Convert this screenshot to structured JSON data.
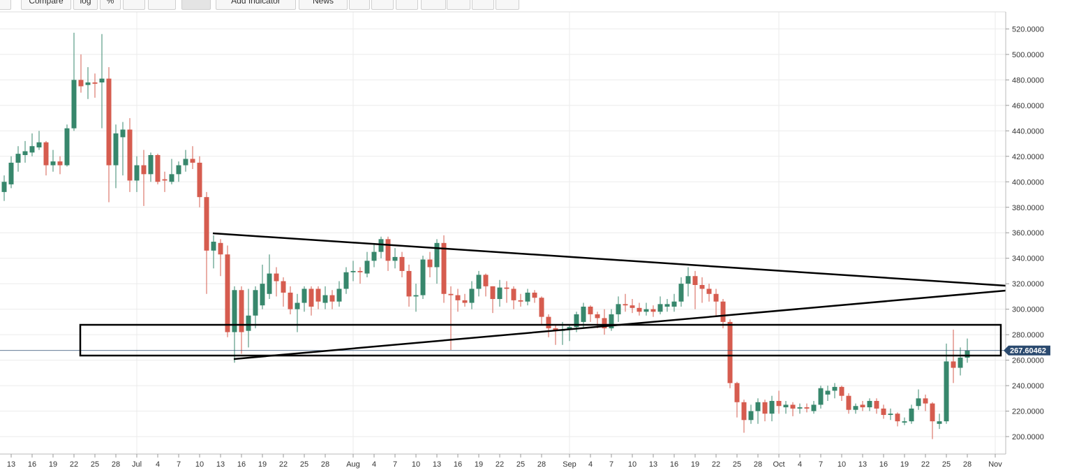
{
  "toolbar": {
    "buttons": [
      "Compare",
      "log",
      "%",
      "Add Indicator",
      "News"
    ]
  },
  "chart_data": {
    "type": "candlestick",
    "x": [
      "Jun 12",
      "Jun 13",
      "Jun 14",
      "Jun 15",
      "Jun 16",
      "Jun 17",
      "Jun 18",
      "Jun 19",
      "Jun 20",
      "Jun 21",
      "Jun 22",
      "Jun 23",
      "Jun 24",
      "Jun 25",
      "Jun 26",
      "Jun 27",
      "Jun 28",
      "Jun 29",
      "Jun 30",
      "Jul 1",
      "Jul 2",
      "Jul 3",
      "Jul 4",
      "Jul 5",
      "Jul 6",
      "Jul 7",
      "Jul 8",
      "Jul 9",
      "Jul 10",
      "Jul 11",
      "Jul 12",
      "Jul 13",
      "Jul 14",
      "Jul 15",
      "Jul 16",
      "Jul 17",
      "Jul 18",
      "Jul 19",
      "Jul 20",
      "Jul 21",
      "Jul 22",
      "Jul 23",
      "Jul 24",
      "Jul 25",
      "Jul 26",
      "Jul 27",
      "Jul 28",
      "Jul 29",
      "Jul 30",
      "Jul 31",
      "Aug 1",
      "Aug 2",
      "Aug 3",
      "Aug 4",
      "Aug 5",
      "Aug 6",
      "Aug 7",
      "Aug 8",
      "Aug 9",
      "Aug 10",
      "Aug 11",
      "Aug 12",
      "Aug 13",
      "Aug 14",
      "Aug 15",
      "Aug 16",
      "Aug 17",
      "Aug 18",
      "Aug 19",
      "Aug 20",
      "Aug 21",
      "Aug 22",
      "Aug 23",
      "Aug 24",
      "Aug 25",
      "Aug 26",
      "Aug 27",
      "Aug 28",
      "Aug 29",
      "Aug 30",
      "Aug 31",
      "Sep 1",
      "Sep 2",
      "Sep 3",
      "Sep 4",
      "Sep 5",
      "Sep 6",
      "Sep 7",
      "Sep 8",
      "Sep 9",
      "Sep 10",
      "Sep 11",
      "Sep 12",
      "Sep 13",
      "Sep 14",
      "Sep 15",
      "Sep 16",
      "Sep 17",
      "Sep 18",
      "Sep 19",
      "Sep 20",
      "Sep 21",
      "Sep 22",
      "Sep 23",
      "Sep 24",
      "Sep 25",
      "Sep 26",
      "Sep 27",
      "Sep 28",
      "Sep 29",
      "Sep 30",
      "Oct 1",
      "Oct 2",
      "Oct 3",
      "Oct 4",
      "Oct 5",
      "Oct 6",
      "Oct 7",
      "Oct 8",
      "Oct 9",
      "Oct 10",
      "Oct 11",
      "Oct 12",
      "Oct 13",
      "Oct 14",
      "Oct 15",
      "Oct 16",
      "Oct 17",
      "Oct 18",
      "Oct 19",
      "Oct 20",
      "Oct 21",
      "Oct 22",
      "Oct 23",
      "Oct 24",
      "Oct 25",
      "Oct 26",
      "Oct 27",
      "Oct 28"
    ],
    "open": [
      392,
      398,
      415,
      421,
      423,
      427,
      431,
      413,
      416,
      413,
      442,
      480,
      476,
      478,
      478,
      481,
      413,
      435,
      441,
      401,
      413,
      406,
      421,
      402,
      400,
      406,
      413,
      418,
      415,
      388,
      346,
      352,
      343,
      282,
      315,
      283,
      295,
      303,
      312,
      328,
      322,
      313,
      300,
      305,
      316,
      316,
      305,
      311,
      306,
      316,
      329,
      330,
      328,
      338,
      345,
      355,
      338,
      341,
      330,
      310,
      311,
      339,
      333,
      352,
      312,
      311,
      307,
      305,
      316,
      327,
      318,
      308,
      317,
      316,
      307,
      306,
      313,
      309,
      294,
      285,
      283,
      284,
      286,
      290,
      302,
      296,
      293,
      285,
      296,
      304,
      303,
      301,
      298,
      300,
      298,
      302,
      302,
      306,
      320,
      326,
      319,
      316,
      312,
      306,
      290,
      242,
      227,
      213,
      220,
      227,
      218,
      228,
      223,
      225,
      222,
      223,
      220,
      225,
      233,
      236,
      239,
      232,
      221,
      225,
      223,
      228,
      222,
      217,
      218,
      211,
      212,
      224,
      230,
      226,
      210,
      212,
      259,
      254,
      262
    ],
    "high": [
      405,
      420,
      428,
      432,
      438,
      440,
      432,
      425,
      420,
      445,
      517,
      500,
      490,
      485,
      516,
      490,
      445,
      447,
      450,
      420,
      425,
      423,
      422,
      408,
      418,
      416,
      425,
      428,
      420,
      392,
      358,
      355,
      350,
      318,
      318,
      316,
      318,
      335,
      343,
      333,
      325,
      318,
      312,
      318,
      318,
      318,
      318,
      315,
      322,
      333,
      338,
      333,
      345,
      352,
      357,
      357,
      348,
      345,
      335,
      320,
      342,
      345,
      355,
      358,
      318,
      316,
      312,
      322,
      330,
      328,
      318,
      323,
      322,
      318,
      312,
      316,
      315,
      310,
      296,
      288,
      290,
      288,
      298,
      305,
      303,
      298,
      300,
      300,
      310,
      312,
      308,
      305,
      305,
      303,
      310,
      308,
      312,
      325,
      333,
      330,
      325,
      320,
      316,
      308,
      292,
      243,
      229,
      225,
      230,
      229,
      232,
      236,
      228,
      227,
      226,
      226,
      228,
      240,
      240,
      242,
      240,
      234,
      226,
      228,
      230,
      230,
      225,
      222,
      219,
      215,
      225,
      237,
      233,
      227,
      218,
      273,
      284,
      270,
      277
    ],
    "low": [
      385,
      395,
      408,
      415,
      420,
      425,
      405,
      408,
      406,
      412,
      440,
      470,
      465,
      466,
      442,
      384,
      395,
      405,
      392,
      392,
      381,
      400,
      398,
      392,
      398,
      400,
      408,
      410,
      380,
      312,
      332,
      326,
      278,
      258,
      265,
      270,
      285,
      300,
      308,
      310,
      302,
      296,
      282,
      298,
      295,
      300,
      300,
      300,
      302,
      312,
      322,
      320,
      325,
      333,
      340,
      330,
      332,
      325,
      302,
      298,
      308,
      325,
      320,
      305,
      268,
      298,
      302,
      300,
      310,
      310,
      297,
      302,
      305,
      300,
      302,
      303,
      305,
      288,
      278,
      272,
      272,
      275,
      282,
      285,
      290,
      285,
      280,
      283,
      290,
      298,
      297,
      295,
      295,
      294,
      296,
      298,
      298,
      302,
      310,
      300,
      305,
      306,
      295,
      285,
      238,
      215,
      203,
      210,
      210,
      212,
      212,
      218,
      218,
      216,
      218,
      219,
      218,
      222,
      228,
      230,
      228,
      218,
      218,
      220,
      220,
      218,
      214,
      213,
      208,
      209,
      210,
      221,
      220,
      198,
      206,
      210,
      242,
      248,
      258
    ],
    "close": [
      400,
      415,
      422,
      424,
      428,
      431,
      413,
      416,
      413,
      442,
      480,
      475,
      478,
      477,
      481,
      413,
      438,
      441,
      401,
      413,
      406,
      421,
      400,
      401,
      406,
      413,
      418,
      415,
      388,
      346,
      353,
      343,
      282,
      315,
      282,
      295,
      315,
      320,
      328,
      322,
      313,
      300,
      305,
      316,
      302,
      306,
      311,
      306,
      316,
      329,
      330,
      329,
      338,
      345,
      355,
      338,
      341,
      330,
      310,
      311,
      339,
      333,
      352,
      312,
      311,
      307,
      305,
      316,
      327,
      318,
      308,
      317,
      316,
      307,
      306,
      313,
      309,
      294,
      285,
      283,
      284,
      286,
      296,
      302,
      296,
      293,
      285,
      296,
      304,
      303,
      301,
      298,
      300,
      298,
      304,
      304,
      306,
      320,
      326,
      319,
      316,
      312,
      306,
      290,
      242,
      227,
      213,
      220,
      227,
      218,
      228,
      224,
      225,
      222,
      223,
      222,
      225,
      238,
      236,
      239,
      232,
      221,
      224,
      223,
      228,
      222,
      217,
      218,
      212,
      212,
      222,
      230,
      226,
      212,
      212,
      259,
      254,
      262,
      267.60462
    ],
    "up_color": "#37876c",
    "down_color": "#d65c4f",
    "last_price": 267.60462,
    "last_price_color": "#2b4a6f",
    "ylim": [
      186.3,
      533.4
    ],
    "yticks": [
      {
        "value": 200,
        "label": "200.0000"
      },
      {
        "value": 220,
        "label": "220.0000"
      },
      {
        "value": 240,
        "label": "240.0000"
      },
      {
        "value": 260,
        "label": "260.0000"
      },
      {
        "value": 280,
        "label": "280.0000"
      },
      {
        "value": 300,
        "label": "300.0000"
      },
      {
        "value": 320,
        "label": "320.0000"
      },
      {
        "value": 340,
        "label": "340.0000"
      },
      {
        "value": 360,
        "label": "360.0000"
      },
      {
        "value": 380,
        "label": "380.0000"
      },
      {
        "value": 400,
        "label": "400.0000"
      },
      {
        "value": 420,
        "label": "420.0000"
      },
      {
        "value": 440,
        "label": "440.0000"
      },
      {
        "value": 460,
        "label": "460.0000"
      },
      {
        "value": 480,
        "label": "480.0000"
      },
      {
        "value": 500,
        "label": "500.0000"
      },
      {
        "value": 520,
        "label": "520.0000"
      }
    ],
    "xticks": [
      {
        "value": "Jun 13",
        "label": "13"
      },
      {
        "value": "Jun 16",
        "label": "16"
      },
      {
        "value": "Jun 19",
        "label": "19"
      },
      {
        "value": "Jun 22",
        "label": "22"
      },
      {
        "value": "Jun 25",
        "label": "25"
      },
      {
        "value": "Jun 28",
        "label": "28"
      },
      {
        "value": "Jul 1",
        "label": "Jul"
      },
      {
        "value": "Jul 4",
        "label": "4"
      },
      {
        "value": "Jul 7",
        "label": "7"
      },
      {
        "value": "Jul 10",
        "label": "10"
      },
      {
        "value": "Jul 13",
        "label": "13"
      },
      {
        "value": "Jul 16",
        "label": "16"
      },
      {
        "value": "Jul 19",
        "label": "19"
      },
      {
        "value": "Jul 22",
        "label": "22"
      },
      {
        "value": "Jul 25",
        "label": "25"
      },
      {
        "value": "Jul 28",
        "label": "28"
      },
      {
        "value": "Aug 1",
        "label": "Aug"
      },
      {
        "value": "Aug 4",
        "label": "4"
      },
      {
        "value": "Aug 7",
        "label": "7"
      },
      {
        "value": "Aug 10",
        "label": "10"
      },
      {
        "value": "Aug 13",
        "label": "13"
      },
      {
        "value": "Aug 16",
        "label": "16"
      },
      {
        "value": "Aug 19",
        "label": "19"
      },
      {
        "value": "Aug 22",
        "label": "22"
      },
      {
        "value": "Aug 25",
        "label": "25"
      },
      {
        "value": "Aug 28",
        "label": "28"
      },
      {
        "value": "Sep 1",
        "label": "Sep"
      },
      {
        "value": "Sep 4",
        "label": "4"
      },
      {
        "value": "Sep 7",
        "label": "7"
      },
      {
        "value": "Sep 10",
        "label": "10"
      },
      {
        "value": "Sep 13",
        "label": "13"
      },
      {
        "value": "Sep 16",
        "label": "16"
      },
      {
        "value": "Sep 19",
        "label": "19"
      },
      {
        "value": "Sep 22",
        "label": "22"
      },
      {
        "value": "Sep 25",
        "label": "25"
      },
      {
        "value": "Sep 28",
        "label": "28"
      },
      {
        "value": "Oct 1",
        "label": "Oct"
      },
      {
        "value": "Oct 4",
        "label": "4"
      },
      {
        "value": "Oct 7",
        "label": "7"
      },
      {
        "value": "Oct 10",
        "label": "10"
      },
      {
        "value": "Oct 13",
        "label": "13"
      },
      {
        "value": "Oct 16",
        "label": "16"
      },
      {
        "value": "Oct 19",
        "label": "19"
      },
      {
        "value": "Oct 22",
        "label": "22"
      },
      {
        "value": "Oct 25",
        "label": "25"
      },
      {
        "value": "Oct 28",
        "label": "28"
      },
      {
        "value": "Nov 1",
        "label": "Nov"
      }
    ],
    "grid": true
  }
}
